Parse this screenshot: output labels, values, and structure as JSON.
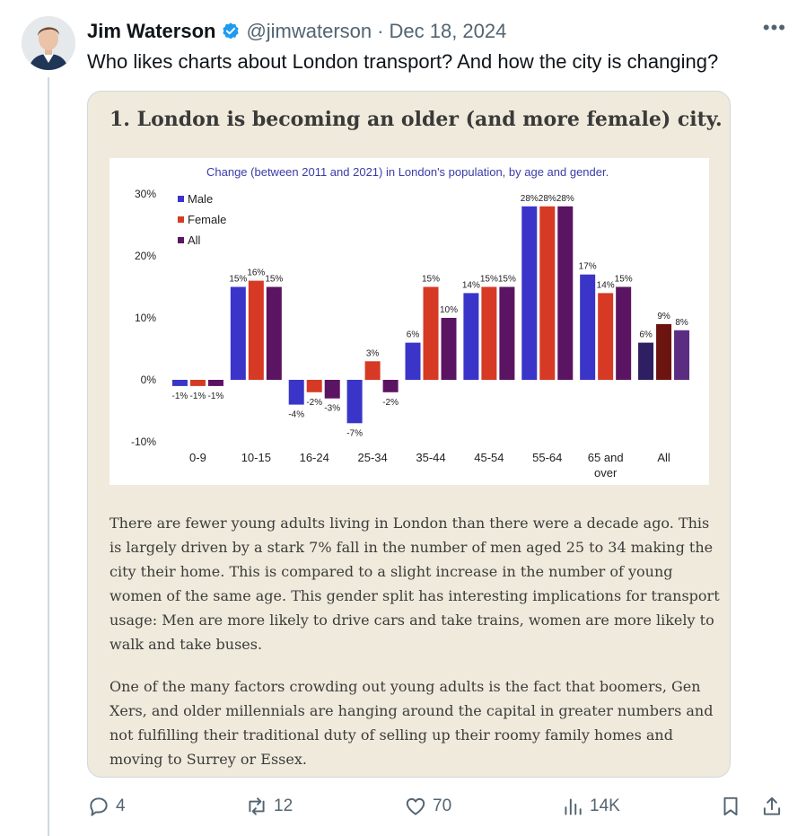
{
  "author": {
    "name": "Jim Waterson",
    "handle": "@jimwaterson",
    "separator": "·",
    "date": "Dec 18, 2024"
  },
  "tweet": {
    "text": "Who likes charts about London transport? And how the city is changing?"
  },
  "card": {
    "title": "1. London is becoming an older (and more female) city.",
    "paragraphs": [
      "There are fewer young adults living in London than there were a decade ago. This is largely driven by a stark 7% fall in the number of men aged 25 to 34 making the city their home. This is compared to a slight increase in the number of young women of the same age. This gender split has interesting implications for transport usage: Men are more likely to drive cars and take trains, women are more likely to walk and take buses.",
      "One of the many factors crowding out young adults is the fact that boomers, Gen Xers, and older millennials are hanging around the capital in greater numbers and not fulfilling their traditional duty of selling up their roomy family homes and moving to Surrey or Essex."
    ]
  },
  "chart_data": {
    "type": "bar",
    "title": "Change (between 2011 and 2021) in London's population, by age and gender.",
    "categories": [
      "0-9",
      "10-15",
      "16-24",
      "25-34",
      "35-44",
      "45-54",
      "55-64",
      "65 and over",
      "All"
    ],
    "series": [
      {
        "name": "Male",
        "color": "#3a35c8",
        "values": [
          -1,
          15,
          -4,
          -7,
          6,
          14,
          28,
          17,
          6
        ]
      },
      {
        "name": "Female",
        "color": "#d63a24",
        "values": [
          -1,
          16,
          -2,
          3,
          15,
          15,
          28,
          14,
          9
        ]
      },
      {
        "name": "All",
        "color": "#5b1461",
        "values": [
          -1,
          15,
          -3,
          -2,
          10,
          15,
          28,
          15,
          8
        ]
      }
    ],
    "labels": [
      [
        "-1%",
        "-1%",
        "-1%"
      ],
      [
        "15%",
        "16%",
        "15%"
      ],
      [
        "-4%",
        "-2%",
        "-3%"
      ],
      [
        "-7%",
        "3%",
        "-2%"
      ],
      [
        "6%",
        "15%",
        "10%"
      ],
      [
        "14%",
        "15%",
        "15%"
      ],
      [
        "28%",
        "28%",
        "28%"
      ],
      [
        "17%",
        "14%",
        "15%"
      ],
      [
        "6%",
        "9%",
        "8%"
      ]
    ],
    "all_group_colors": [
      "#2e1f63",
      "#6b1410",
      "#5a2d82"
    ],
    "ylim": [
      -10,
      30
    ],
    "yticks": [
      -10,
      0,
      10,
      20,
      30
    ],
    "ytick_labels": [
      "-10%",
      "0%",
      "10%",
      "20%",
      "30%"
    ],
    "grid": false,
    "legend": "top-left"
  },
  "actions": {
    "reply_count": "4",
    "repost_count": "12",
    "like_count": "70",
    "views_count": "14K"
  },
  "colors": {
    "accent": "#1d9bf0",
    "muted": "#536471",
    "card_bg": "#efeadb"
  }
}
